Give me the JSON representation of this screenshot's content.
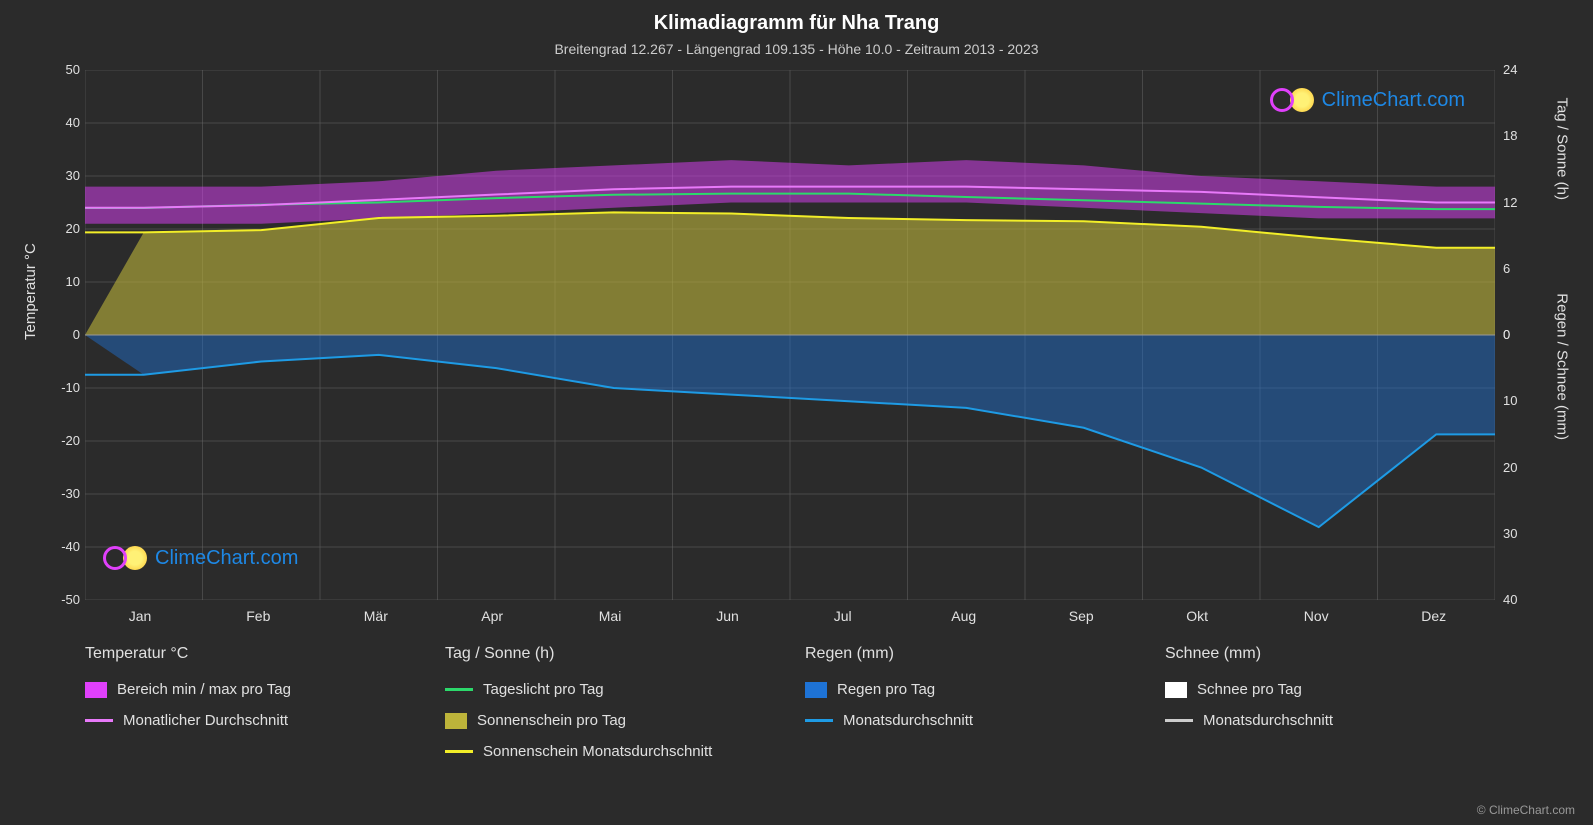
{
  "title": "Klimadiagramm für Nha Trang",
  "subtitle": "Breitengrad 12.267 - Längengrad 109.135 - Höhe 10.0 - Zeitraum 2013 - 2023",
  "watermark_text": "ClimeChart.com",
  "copyright": "© ClimeChart.com",
  "chart": {
    "type": "climate-diagram",
    "background_color": "#2b2b2b",
    "grid_color": "#666666",
    "grid_width": 0.5,
    "font_color": "#e0e0e0",
    "months": [
      "Jan",
      "Feb",
      "Mär",
      "Apr",
      "Mai",
      "Jun",
      "Jul",
      "Aug",
      "Sep",
      "Okt",
      "Nov",
      "Dez"
    ],
    "left_axis": {
      "label": "Temperatur °C",
      "min": -50,
      "max": 50,
      "step": 10,
      "ticks": [
        -50,
        -40,
        -30,
        -20,
        -10,
        0,
        10,
        20,
        30,
        40,
        50
      ]
    },
    "right_axis_top": {
      "label": "Tag / Sonne (h)",
      "min": 0,
      "max": 24,
      "step": 6,
      "ticks": [
        0,
        6,
        12,
        18,
        24
      ],
      "maps_to_temp": [
        0,
        12.5,
        25,
        37.5,
        50
      ]
    },
    "right_axis_bottom": {
      "label": "Regen / Schnee (mm)",
      "min": 0,
      "max": 40,
      "step": 10,
      "ticks": [
        0,
        10,
        20,
        30,
        40
      ],
      "maps_to_temp": [
        0,
        -12.5,
        -25,
        -37.5,
        -50
      ]
    },
    "series": {
      "temp_range_band": {
        "color": "#e040fb",
        "opacity": 0.5,
        "min": [
          21,
          21,
          22,
          23,
          24,
          25,
          25,
          25,
          24,
          23,
          22,
          22
        ],
        "max": [
          28,
          28,
          29,
          31,
          32,
          33,
          32,
          33,
          32,
          30,
          29,
          28
        ]
      },
      "temp_monthly_avg": {
        "color": "#e879f9",
        "width": 2,
        "values": [
          24,
          24.5,
          25.5,
          26.5,
          27.5,
          28,
          28,
          28,
          27.5,
          27,
          26,
          25
        ]
      },
      "daylight_hours": {
        "color": "#2cd96b",
        "width": 2,
        "values": [
          11.5,
          11.8,
          12.0,
          12.4,
          12.7,
          12.8,
          12.8,
          12.5,
          12.2,
          11.9,
          11.6,
          11.4
        ]
      },
      "sunshine_band": {
        "color": "#bdb43a",
        "opacity": 0.6,
        "from_zero_to": [
          9.3,
          9.5,
          10.6,
          10.8,
          11.1,
          11.0,
          10.6,
          10.4,
          10.3,
          9.8,
          8.8,
          7.9
        ]
      },
      "sunshine_monthly_avg": {
        "color": "#f2ee28",
        "width": 2,
        "values": [
          9.3,
          9.5,
          10.6,
          10.8,
          11.1,
          11.0,
          10.6,
          10.4,
          10.3,
          9.8,
          8.8,
          7.9
        ]
      },
      "rain_band": {
        "color": "#1e73d6",
        "opacity": 0.45,
        "from_zero_to_mm": [
          6,
          4,
          3,
          5,
          8,
          9,
          10,
          11,
          14,
          20,
          29,
          15
        ]
      },
      "rain_monthly_avg": {
        "color": "#1e9be5",
        "width": 2,
        "values_mm": [
          6,
          4,
          3,
          5,
          8,
          9,
          10,
          11,
          14,
          20,
          29,
          15
        ]
      },
      "snow_band": {
        "color": "#ffffff",
        "opacity": 0.4,
        "from_zero_to_mm": [
          0,
          0,
          0,
          0,
          0,
          0,
          0,
          0,
          0,
          0,
          0,
          0
        ]
      },
      "snow_monthly_avg": {
        "color": "#cccccc",
        "width": 2,
        "values_mm": [
          0,
          0,
          0,
          0,
          0,
          0,
          0,
          0,
          0,
          0,
          0,
          0
        ]
      }
    }
  },
  "legend": {
    "columns": [
      {
        "title": "Temperatur °C",
        "items": [
          {
            "swatch_type": "box",
            "color": "#e040fb",
            "label": "Bereich min / max pro Tag"
          },
          {
            "swatch_type": "line",
            "color": "#e879f9",
            "label": "Monatlicher Durchschnitt"
          }
        ]
      },
      {
        "title": "Tag / Sonne (h)",
        "items": [
          {
            "swatch_type": "line",
            "color": "#2cd96b",
            "label": "Tageslicht pro Tag"
          },
          {
            "swatch_type": "box",
            "color": "#bdb43a",
            "label": "Sonnenschein pro Tag"
          },
          {
            "swatch_type": "line",
            "color": "#f2ee28",
            "label": "Sonnenschein Monatsdurchschnitt"
          }
        ]
      },
      {
        "title": "Regen (mm)",
        "items": [
          {
            "swatch_type": "box",
            "color": "#1e73d6",
            "label": "Regen pro Tag"
          },
          {
            "swatch_type": "line",
            "color": "#1e9be5",
            "label": "Monatsdurchschnitt"
          }
        ]
      },
      {
        "title": "Schnee (mm)",
        "items": [
          {
            "swatch_type": "box",
            "color": "#ffffff",
            "label": "Schnee pro Tag"
          },
          {
            "swatch_type": "line",
            "color": "#cccccc",
            "label": "Monatsdurchschnitt"
          }
        ]
      }
    ]
  }
}
